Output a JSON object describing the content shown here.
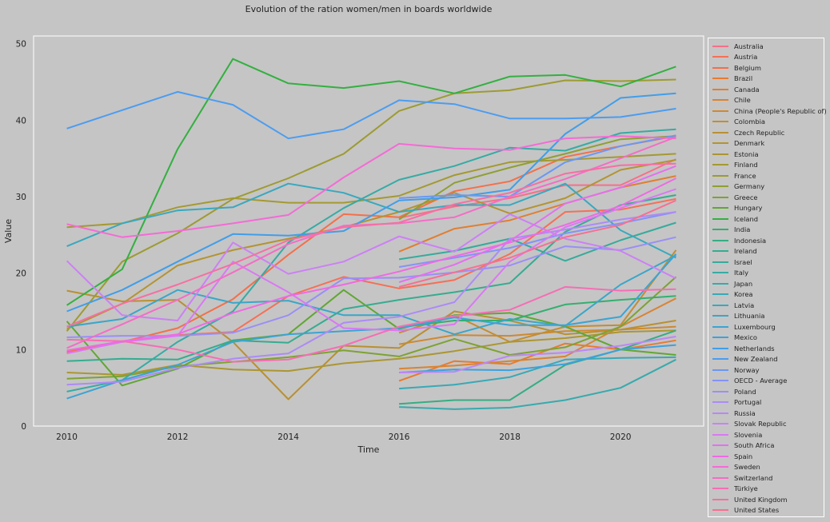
{
  "chart_data": {
    "type": "line",
    "title": "Evolution of the ration women/men in boards worldwide",
    "xlabel": "Time",
    "ylabel": "Value",
    "xlim": [
      2009.4,
      2021.5
    ],
    "ylim": [
      0,
      51
    ],
    "x_ticks": [
      2010,
      2012,
      2014,
      2016,
      2018,
      2020
    ],
    "y_ticks": [
      0,
      10,
      20,
      30,
      40,
      50
    ],
    "grid": false,
    "legend_position": "outside-right",
    "series": [
      {
        "name": "Australia",
        "color": "#f67088",
        "x": [
          2016,
          2017,
          2018,
          2019,
          2020,
          2021
        ],
        "values": [
          27.2,
          28.7,
          29.8,
          31.5,
          31.5,
          34.9
        ]
      },
      {
        "name": "Austria",
        "color": "#f57057",
        "x": [
          2010,
          2011,
          2012,
          2013,
          2014,
          2015,
          2016,
          2017,
          2018,
          2019,
          2020,
          2021
        ],
        "values": [
          9.7,
          11.0,
          11.9,
          12.3,
          17.0,
          19.5,
          18.0,
          19.1,
          22.5,
          28.0,
          28.3,
          29.7
        ]
      },
      {
        "name": "Belgium",
        "color": "#f3704b",
        "x": [
          2010,
          2011,
          2012,
          2013,
          2014,
          2015,
          2016,
          2017,
          2018,
          2019,
          2020,
          2021
        ],
        "values": [
          9.6,
          11.0,
          12.8,
          16.6,
          22.4,
          27.7,
          27.3,
          30.7,
          32.0,
          35.2,
          36.6,
          37.9
        ]
      },
      {
        "name": "Brazil",
        "color": "#e77b31",
        "x": [
          2016,
          2017,
          2018,
          2019,
          2020,
          2021
        ],
        "values": [
          5.9,
          8.5,
          8.1,
          10.8,
          10.0,
          11.2
        ]
      },
      {
        "name": "Canada",
        "color": "#e07f32",
        "x": [
          2016,
          2017,
          2018,
          2019,
          2020,
          2021
        ],
        "values": [
          22.8,
          25.8,
          26.9,
          29.1,
          31.2,
          32.7
        ]
      },
      {
        "name": "Chile",
        "color": "#d88432",
        "x": [
          2016,
          2017,
          2018,
          2019,
          2020,
          2021
        ],
        "values": [
          7.5,
          7.9,
          8.5,
          9.1,
          13.0,
          16.7
        ]
      },
      {
        "name": "China (People's Republic of)",
        "color": "#cd8932",
        "x": [
          2016,
          2017,
          2018,
          2019,
          2020,
          2021
        ],
        "values": [
          10.7,
          11.9,
          11.8,
          12.4,
          12.6,
          13.0
        ]
      },
      {
        "name": "Colombia",
        "color": "#c38d32",
        "x": [
          2016,
          2017,
          2018,
          2019,
          2020,
          2021
        ],
        "values": [
          12.2,
          14.5,
          11.0,
          13.0,
          13.2,
          23.0
        ]
      },
      {
        "name": "Czech Republic",
        "color": "#b99032",
        "x": [
          2010,
          2011,
          2012,
          2013,
          2014,
          2015,
          2016,
          2017,
          2018,
          2019,
          2020,
          2021
        ],
        "values": [
          17.7,
          16.3,
          16.5,
          11.0,
          3.5,
          10.5,
          10.2,
          15.0,
          13.8,
          12.0,
          12.6,
          13.8
        ]
      },
      {
        "name": "Denmark",
        "color": "#b39432",
        "x": [
          2010,
          2011,
          2012,
          2013,
          2014,
          2015,
          2016,
          2017,
          2018,
          2019,
          2020,
          2021
        ],
        "values": [
          12.7,
          16.0,
          21.0,
          23.0,
          24.5,
          26.0,
          28.0,
          30.5,
          27.8,
          29.8,
          33.5,
          34.8
        ]
      },
      {
        "name": "Estonia",
        "color": "#ab9632",
        "x": [
          2010,
          2011,
          2012,
          2013,
          2014,
          2015,
          2016,
          2017,
          2018,
          2019,
          2020,
          2021
        ],
        "values": [
          7.0,
          6.7,
          8.0,
          7.4,
          7.2,
          8.2,
          8.8,
          9.8,
          11.0,
          11.5,
          12.3,
          12.5
        ]
      },
      {
        "name": "Finland",
        "color": "#a49932",
        "x": [
          2010,
          2011,
          2012,
          2013,
          2014,
          2015,
          2016,
          2017,
          2018,
          2019,
          2020,
          2021
        ],
        "values": [
          26.0,
          26.5,
          28.6,
          29.8,
          29.2,
          29.2,
          30.1,
          32.8,
          34.5,
          34.8,
          35.2,
          35.6
        ]
      },
      {
        "name": "France",
        "color": "#9d9b32",
        "x": [
          2010,
          2011,
          2012,
          2013,
          2014,
          2015,
          2016,
          2017,
          2018,
          2019,
          2020,
          2021
        ],
        "values": [
          12.4,
          21.5,
          25.2,
          29.7,
          32.4,
          35.6,
          41.2,
          43.5,
          43.9,
          45.2,
          45.1,
          45.3
        ]
      },
      {
        "name": "Germany",
        "color": "#8f9f32",
        "x": [
          2016,
          2017,
          2018,
          2019,
          2020,
          2021
        ],
        "values": [
          27.0,
          31.8,
          33.8,
          35.6,
          37.5,
          37.9
        ]
      },
      {
        "name": "Greece",
        "color": "#7ea232",
        "x": [
          2010,
          2011,
          2012,
          2013,
          2014,
          2015,
          2016,
          2017,
          2018,
          2019,
          2020,
          2021
        ],
        "values": [
          6.2,
          6.5,
          7.8,
          8.4,
          9.0,
          9.9,
          9.1,
          11.4,
          9.3,
          10.3,
          13.0,
          19.5
        ]
      },
      {
        "name": "Hungary",
        "color": "#61a732",
        "x": [
          2010,
          2011,
          2012,
          2013,
          2014,
          2015,
          2016,
          2017,
          2018,
          2019,
          2020,
          2021
        ],
        "values": [
          13.7,
          5.3,
          7.5,
          11.2,
          12.0,
          17.8,
          12.7,
          14.5,
          14.8,
          13.0,
          10.0,
          9.3
        ]
      },
      {
        "name": "Iceland",
        "color": "#33b040",
        "x": [
          2010,
          2011,
          2012,
          2013,
          2014,
          2015,
          2016,
          2017,
          2018,
          2019,
          2020,
          2021
        ],
        "values": [
          15.8,
          20.5,
          36.2,
          48.0,
          44.8,
          44.2,
          45.1,
          43.5,
          45.7,
          45.9,
          44.4,
          47.0
        ]
      },
      {
        "name": "India",
        "color": "#34af6f",
        "x": [
          2016,
          2017,
          2018,
          2019,
          2020,
          2021
        ],
        "values": [
          12.9,
          13.8,
          13.8,
          15.9,
          16.5,
          17.0
        ]
      },
      {
        "name": "Indonesia",
        "color": "#35ad83",
        "x": [
          2016,
          2017,
          2018,
          2019,
          2020,
          2021
        ],
        "values": [
          2.9,
          3.4,
          3.4,
          8.0,
          10.0,
          12.5
        ]
      },
      {
        "name": "Ireland",
        "color": "#35ac90",
        "x": [
          2010,
          2011,
          2012,
          2013,
          2014,
          2015,
          2016,
          2017,
          2018,
          2019,
          2020,
          2021
        ],
        "values": [
          8.5,
          8.8,
          8.7,
          11.2,
          10.9,
          15.3,
          16.5,
          17.5,
          18.7,
          25.4,
          28.9,
          30.2
        ]
      },
      {
        "name": "Israel",
        "color": "#36ab9b",
        "x": [
          2016,
          2017,
          2018,
          2019,
          2020,
          2021
        ],
        "values": [
          21.8,
          22.9,
          24.5,
          21.6,
          24.3,
          26.6
        ]
      },
      {
        "name": "Italy",
        "color": "#36aba4",
        "x": [
          2010,
          2011,
          2012,
          2013,
          2014,
          2015,
          2016,
          2017,
          2018,
          2019,
          2020,
          2021
        ],
        "values": [
          4.5,
          6.0,
          11.0,
          15.0,
          24.0,
          28.5,
          32.2,
          34.0,
          36.4,
          36.0,
          38.3,
          38.8
        ]
      },
      {
        "name": "Japan",
        "color": "#37aaad",
        "x": [
          2016,
          2017,
          2018,
          2019,
          2020,
          2021
        ],
        "values": [
          2.5,
          2.2,
          2.4,
          3.4,
          5.0,
          8.7
        ]
      },
      {
        "name": "Korea",
        "color": "#38a9b6",
        "x": [
          2016,
          2017,
          2018,
          2019,
          2020,
          2021
        ],
        "values": [
          4.9,
          5.4,
          6.4,
          8.7,
          8.9,
          9.0
        ]
      },
      {
        "name": "Latvia",
        "color": "#39a8be",
        "x": [
          2010,
          2011,
          2012,
          2013,
          2014,
          2015,
          2016,
          2017,
          2018,
          2019,
          2020,
          2021
        ],
        "values": [
          23.5,
          26.5,
          28.2,
          28.6,
          31.7,
          30.5,
          28.0,
          28.9,
          28.9,
          31.7,
          25.6,
          22.0
        ]
      },
      {
        "name": "Lithuania",
        "color": "#3aa6c8",
        "x": [
          2010,
          2011,
          2012,
          2013,
          2014,
          2015,
          2016,
          2017,
          2018,
          2019,
          2020,
          2021
        ],
        "values": [
          13.0,
          14.0,
          17.8,
          16.1,
          16.4,
          14.5,
          14.5,
          12.0,
          14.0,
          13.1,
          18.5,
          22.3
        ]
      },
      {
        "name": "Luxembourg",
        "color": "#3ba4d3",
        "x": [
          2010,
          2011,
          2012,
          2013,
          2014,
          2015,
          2016,
          2017,
          2018,
          2019,
          2020,
          2021
        ],
        "values": [
          3.6,
          6.0,
          8.0,
          11.0,
          12.0,
          12.4,
          12.8,
          14.2,
          13.2,
          13.2,
          14.3,
          22.5
        ]
      },
      {
        "name": "Mexico",
        "color": "#3da1de",
        "x": [
          2016,
          2017,
          2018,
          2019,
          2020,
          2021
        ],
        "values": [
          7.0,
          7.4,
          7.3,
          8.1,
          10.0,
          10.6
        ]
      },
      {
        "name": "Netherlands",
        "color": "#419ee9",
        "x": [
          2010,
          2011,
          2012,
          2013,
          2014,
          2015,
          2016,
          2017,
          2018,
          2019,
          2020,
          2021
        ],
        "values": [
          15.0,
          17.8,
          21.5,
          25.1,
          24.9,
          25.5,
          29.5,
          29.9,
          30.9,
          38.2,
          42.9,
          43.5
        ]
      },
      {
        "name": "New Zealand",
        "color": "#4c9cf0",
        "x": [
          2010,
          2011,
          2012,
          2013,
          2014,
          2015,
          2016,
          2017,
          2018,
          2019,
          2020,
          2021
        ],
        "values": [
          38.9,
          41.3,
          43.7,
          42.0,
          37.6,
          38.8,
          42.6,
          42.1,
          40.2,
          40.2,
          40.4,
          41.5
        ]
      },
      {
        "name": "Norway",
        "color": "#6b97f3",
        "x": [
          2016,
          2017,
          2018,
          2019,
          2020,
          2021
        ],
        "values": [
          29.8,
          30.2,
          30.0,
          34.5,
          36.6,
          38.0
        ]
      },
      {
        "name": "OECD - Average",
        "color": "#8493f5",
        "x": [
          2016,
          2017,
          2018,
          2019,
          2020,
          2021
        ],
        "values": [
          20.8,
          22.0,
          23.3,
          25.2,
          26.5,
          28.0
        ]
      },
      {
        "name": "Poland",
        "color": "#9a8ff5",
        "x": [
          2010,
          2011,
          2012,
          2013,
          2014,
          2015,
          2016,
          2017,
          2018,
          2019,
          2020,
          2021
        ],
        "values": [
          11.6,
          11.8,
          11.8,
          12.2,
          14.5,
          19.3,
          19.4,
          20.1,
          21.0,
          23.5,
          23.0,
          24.7
        ]
      },
      {
        "name": "Portugal",
        "color": "#ac8bf5",
        "x": [
          2010,
          2011,
          2012,
          2013,
          2014,
          2015,
          2016,
          2017,
          2018,
          2019,
          2020,
          2021
        ],
        "values": [
          5.4,
          5.8,
          7.6,
          8.8,
          9.5,
          13.5,
          14.3,
          16.2,
          24.5,
          25.7,
          27.0,
          28.0
        ]
      },
      {
        "name": "Russia",
        "color": "#bc86f5",
        "x": [
          2016,
          2017,
          2018,
          2019,
          2020,
          2021
        ],
        "values": [
          7.0,
          7.1,
          9.2,
          9.6,
          10.5,
          11.7
        ]
      },
      {
        "name": "Slovak Republic",
        "color": "#cc80f5",
        "x": [
          2010,
          2011,
          2012,
          2013,
          2014,
          2015,
          2016,
          2017,
          2018,
          2019,
          2020,
          2021
        ],
        "values": [
          21.6,
          14.5,
          13.8,
          24.0,
          19.9,
          21.5,
          24.8,
          22.8,
          27.7,
          24.5,
          22.9,
          19.3
        ]
      },
      {
        "name": "Slovenia",
        "color": "#da78f4",
        "x": [
          2010,
          2011,
          2012,
          2013,
          2014,
          2015,
          2016,
          2017,
          2018,
          2019,
          2020,
          2021
        ],
        "values": [
          9.5,
          11.0,
          11.8,
          21.5,
          17.5,
          12.8,
          12.5,
          13.3,
          21.5,
          26.0,
          28.5,
          31.0
        ]
      },
      {
        "name": "South Africa",
        "color": "#e56ff0",
        "x": [
          2016,
          2017,
          2018,
          2019,
          2020,
          2021
        ],
        "values": [
          18.8,
          21.1,
          24.2,
          29.1,
          31.2,
          34.0
        ]
      },
      {
        "name": "Spain",
        "color": "#ef6ae4",
        "x": [
          2010,
          2011,
          2012,
          2013,
          2014,
          2015,
          2016,
          2017,
          2018,
          2019,
          2020,
          2021
        ],
        "values": [
          9.9,
          11.1,
          12.0,
          14.8,
          17.0,
          18.5,
          20.2,
          22.2,
          24.0,
          26.3,
          28.8,
          32.4
        ]
      },
      {
        "name": "Sweden",
        "color": "#f46bd6",
        "x": [
          2010,
          2011,
          2012,
          2013,
          2014,
          2015,
          2016,
          2017,
          2018,
          2019,
          2020,
          2021
        ],
        "values": [
          26.4,
          24.7,
          25.5,
          26.5,
          27.6,
          32.5,
          36.9,
          36.3,
          36.1,
          37.6,
          37.9,
          37.6
        ]
      },
      {
        "name": "Switzerland",
        "color": "#f46dc6",
        "x": [
          2010,
          2011,
          2012,
          2013,
          2014,
          2015,
          2016,
          2017,
          2018,
          2019,
          2020,
          2021
        ],
        "values": [
          10.2,
          13.3,
          16.5,
          20.1,
          23.8,
          26.2,
          26.5,
          27.3,
          30.0,
          32.3,
          35.0,
          37.8
        ]
      },
      {
        "name": "Türkiye",
        "color": "#f56eb5",
        "x": [
          2010,
          2011,
          2012,
          2013,
          2014,
          2015,
          2016,
          2017,
          2018,
          2019,
          2020,
          2021
        ],
        "values": [
          11.3,
          11.1,
          10.0,
          8.4,
          8.7,
          10.5,
          13.0,
          14.4,
          15.2,
          18.2,
          17.7,
          17.9
        ]
      },
      {
        "name": "United Kingdom",
        "color": "#f66fa3",
        "x": [
          2010,
          2011,
          2012,
          2013,
          2014,
          2015,
          2016,
          2017,
          2018,
          2019,
          2020,
          2021
        ],
        "values": [
          13.0,
          16.0,
          18.5,
          21.2,
          24.3,
          26.0,
          26.6,
          29.0,
          30.5,
          33.0,
          34.1,
          34.3
        ]
      },
      {
        "name": "United States",
        "color": "#f67093",
        "x": [
          2016,
          2017,
          2018,
          2019,
          2020,
          2021
        ],
        "values": [
          18.2,
          20.1,
          22.0,
          24.7,
          26.3,
          29.5
        ]
      }
    ]
  }
}
